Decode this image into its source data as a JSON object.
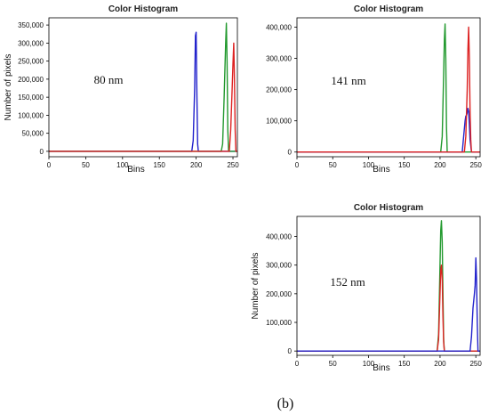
{
  "caption": "(b)",
  "chart_data": [
    {
      "type": "line",
      "title": "Color Histogram",
      "xlabel": "Bins",
      "ylabel": "Number of pixels",
      "annotation": "80 nm",
      "xlim": [
        0,
        256
      ],
      "ylim": [
        -15000,
        370000
      ],
      "x_ticks": [
        0,
        50,
        100,
        150,
        200,
        250
      ],
      "y_ticks": [
        0,
        50000,
        100000,
        150000,
        200000,
        250000,
        300000,
        350000
      ],
      "y_tick_labels": [
        "0",
        "50,000",
        "100,000",
        "150,000",
        "200,000",
        "250,000",
        "300,000",
        "350,000"
      ],
      "grid": false,
      "legend": "none",
      "series": [
        {
          "color": "#2222cc",
          "x": [
            0,
            194,
            196,
            198,
            199,
            200,
            201,
            202,
            203,
            256
          ],
          "values": [
            0,
            0,
            30000,
            180000,
            320000,
            330000,
            150000,
            20000,
            0,
            0
          ]
        },
        {
          "color": "#22992e",
          "x": [
            0,
            234,
            236,
            238,
            240,
            241,
            242,
            243,
            244,
            256
          ],
          "values": [
            0,
            0,
            20000,
            150000,
            300000,
            355000,
            250000,
            60000,
            0,
            0
          ]
        },
        {
          "color": "#dd2222",
          "x": [
            0,
            245,
            247,
            249,
            250,
            251,
            252,
            253,
            254,
            256
          ],
          "values": [
            0,
            0,
            60000,
            180000,
            240000,
            300000,
            200000,
            60000,
            0,
            0
          ]
        }
      ]
    },
    {
      "type": "line",
      "title": "Color Histogram",
      "xlabel": "Bins",
      "ylabel": "",
      "annotation": "141 nm",
      "xlim": [
        0,
        256
      ],
      "ylim": [
        -15000,
        430000
      ],
      "x_ticks": [
        0,
        50,
        100,
        150,
        200,
        250
      ],
      "y_ticks": [
        0,
        100000,
        200000,
        300000,
        400000
      ],
      "y_tick_labels": [
        "0",
        "100,000",
        "200,000",
        "300,000",
        "400,000"
      ],
      "grid": false,
      "legend": "none",
      "series": [
        {
          "color": "#22992e",
          "x": [
            0,
            201,
            203,
            205,
            206,
            207,
            208,
            209,
            210,
            256
          ],
          "values": [
            0,
            0,
            50000,
            250000,
            360000,
            410000,
            300000,
            80000,
            0,
            0
          ]
        },
        {
          "color": "#2222cc",
          "x": [
            0,
            231,
            233,
            235,
            236,
            237,
            238,
            239,
            240,
            241,
            242,
            244,
            256
          ],
          "values": [
            0,
            0,
            50000,
            100000,
            115000,
            118000,
            125000,
            140000,
            130000,
            90000,
            40000,
            0,
            0
          ]
        },
        {
          "color": "#dd2222",
          "x": [
            0,
            234,
            236,
            238,
            239,
            240,
            241,
            242,
            243,
            244,
            256
          ],
          "values": [
            0,
            0,
            50000,
            200000,
            330000,
            400000,
            300000,
            130000,
            40000,
            0,
            0
          ]
        }
      ]
    },
    {
      "type": "line",
      "title": "Color Histogram",
      "xlabel": "Bins",
      "ylabel": "Number of pixels",
      "annotation": "152 nm",
      "xlim": [
        0,
        256
      ],
      "ylim": [
        -15000,
        470000
      ],
      "x_ticks": [
        0,
        50,
        100,
        150,
        200,
        250
      ],
      "y_ticks": [
        0,
        100000,
        200000,
        300000,
        400000
      ],
      "y_tick_labels": [
        "0",
        "100,000",
        "200,000",
        "300,000",
        "400,000"
      ],
      "grid": false,
      "legend": "none",
      "series": [
        {
          "color": "#22992e",
          "x": [
            0,
            196,
            198,
            200,
            201,
            202,
            203,
            204,
            205,
            206,
            256
          ],
          "values": [
            0,
            0,
            60000,
            300000,
            420000,
            455000,
            380000,
            200000,
            40000,
            0,
            0
          ]
        },
        {
          "color": "#dd2222",
          "x": [
            0,
            196,
            198,
            200,
            201,
            202,
            203,
            204,
            205,
            206,
            256
          ],
          "values": [
            0,
            0,
            40000,
            200000,
            280000,
            300000,
            250000,
            120000,
            30000,
            0,
            0
          ]
        },
        {
          "color": "#2222cc",
          "x": [
            0,
            242,
            244,
            246,
            248,
            249,
            250,
            251,
            252,
            253,
            256
          ],
          "values": [
            0,
            0,
            50000,
            150000,
            200000,
            230000,
            325000,
            250000,
            100000,
            0,
            0
          ]
        }
      ]
    }
  ]
}
